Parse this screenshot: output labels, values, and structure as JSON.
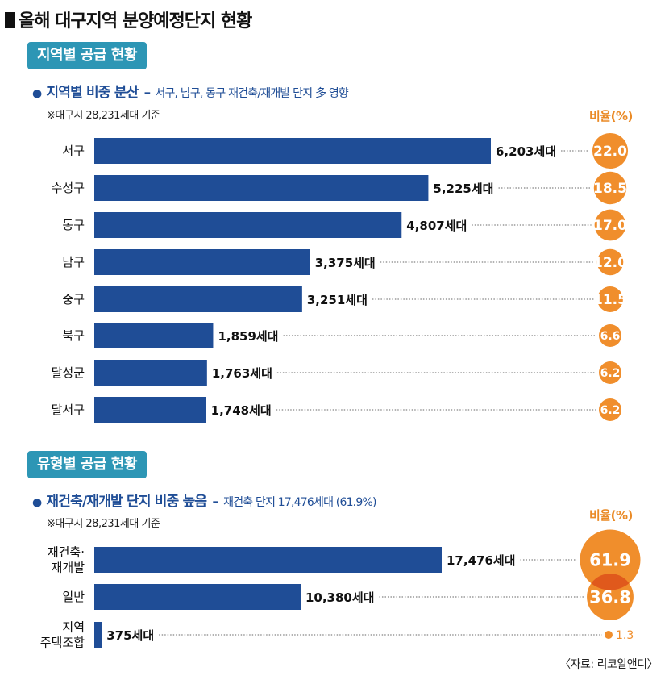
{
  "title": "올해 대구지역 분양예정단지 현황",
  "source": "〈자료: 리코알앤디〉",
  "chart_data": [
    {
      "type": "bar",
      "orientation": "horizontal",
      "section_label": "지역별 공급 현황",
      "subtitle": "지역별 비중 분산",
      "subtitle_desc": "서구, 남구, 동구 재건축/재개발 단지 多 영향",
      "note": "※대구시 28,231세대 기준",
      "ratio_header": "비율(%)",
      "unit": "세대",
      "categories": [
        "서구",
        "수성구",
        "동구",
        "남구",
        "중구",
        "북구",
        "달성군",
        "달서구"
      ],
      "values": [
        6203,
        5225,
        4807,
        3375,
        3251,
        1859,
        1763,
        1748
      ],
      "value_labels": [
        "6,203세대",
        "5,225세대",
        "4,807세대",
        "3,375세대",
        "3,251세대",
        "1,859세대",
        "1,763세대",
        "1,748세대"
      ],
      "ratios": [
        22.0,
        18.5,
        17.0,
        12.0,
        11.5,
        6.6,
        6.2,
        6.2
      ],
      "ratio_labels": [
        "22.0",
        "18.5",
        "17.0",
        "12.0",
        "11.5",
        "6.6",
        "6.2",
        "6.2"
      ],
      "max": 6203
    },
    {
      "type": "bar",
      "orientation": "horizontal",
      "section_label": "유형별 공급 현황",
      "subtitle": "재건축/재개발 단지 비중 높음",
      "subtitle_desc": "재건축 단지 17,476세대 (61.9%)",
      "note": "※대구시 28,231세대 기준",
      "ratio_header": "비율(%)",
      "unit": "세대",
      "categories": [
        [
          "재건축·",
          "재개발"
        ],
        [
          "일반"
        ],
        [
          "지역",
          "주택조합"
        ]
      ],
      "values": [
        17476,
        10380,
        375
      ],
      "value_labels": [
        "17,476세대",
        "10,380세대",
        "375세대"
      ],
      "ratios": [
        61.9,
        36.8,
        1.3
      ],
      "ratio_labels": [
        "61.9",
        "36.8",
        "1.3"
      ],
      "max": 17476
    }
  ],
  "colors": {
    "bar": "#1f4d96",
    "accent_blue": "#2d96b5",
    "circle": "#f08e2c",
    "circle_dark": "#e0591c",
    "ratio_head": "#ea8a26"
  }
}
